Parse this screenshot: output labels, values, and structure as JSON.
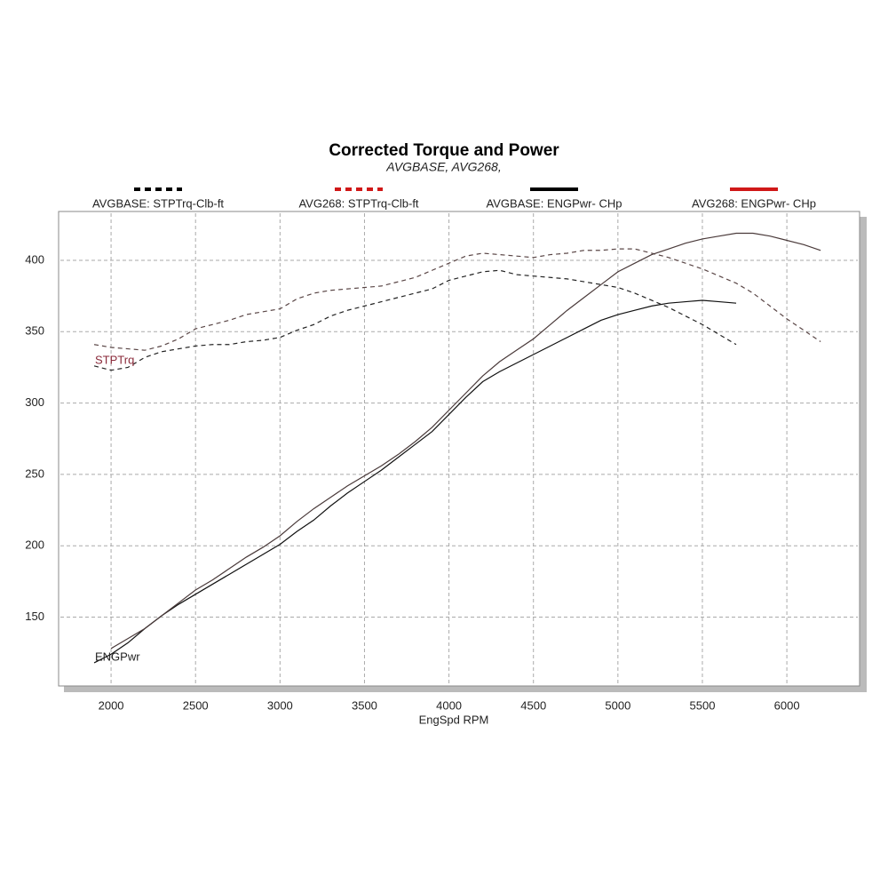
{
  "chart_data": {
    "type": "line",
    "title": "Corrected Torque and Power",
    "subtitle": "AVGBASE, AVG268,",
    "x_label": "EngSpd  RPM",
    "annotations": [
      "STPTrq",
      "ENGPwr"
    ],
    "xlim": [
      1700,
      6420
    ],
    "ylim": [
      103,
      433
    ],
    "xticks": [
      2000,
      2500,
      3000,
      3500,
      4000,
      4500,
      5000,
      5500,
      6000
    ],
    "yticks": [
      150,
      200,
      250,
      300,
      350,
      400
    ],
    "grid": true,
    "series": [
      {
        "name": "AVGBASE: STPTrq-Clb-ft",
        "color": "#000000",
        "line_color": "#222222",
        "dashed": true,
        "x": [
          1900,
          2000,
          2100,
          2200,
          2300,
          2400,
          2500,
          2600,
          2700,
          2800,
          2900,
          3000,
          3100,
          3200,
          3300,
          3400,
          3500,
          3600,
          3700,
          3800,
          3900,
          4000,
          4100,
          4200,
          4300,
          4400,
          4500,
          4600,
          4700,
          4800,
          4900,
          5000,
          5100,
          5200,
          5300,
          5400,
          5500,
          5600,
          5700
        ],
        "values": [
          326,
          323,
          325,
          332,
          336,
          338,
          340,
          341,
          341,
          343,
          344,
          346,
          351,
          355,
          361,
          365,
          368,
          371,
          374,
          377,
          380,
          386,
          389,
          392,
          393,
          390,
          389,
          388,
          387,
          385,
          383,
          381,
          377,
          372,
          367,
          361,
          355,
          348,
          341
        ]
      },
      {
        "name": "AVG268: STPTrq-Clb-ft",
        "color": "#d01818",
        "line_color": "#5a4646",
        "dashed": true,
        "x": [
          1900,
          2000,
          2100,
          2200,
          2300,
          2400,
          2500,
          2600,
          2700,
          2800,
          2900,
          3000,
          3100,
          3200,
          3300,
          3400,
          3500,
          3600,
          3700,
          3800,
          3900,
          4000,
          4100,
          4200,
          4300,
          4400,
          4500,
          4600,
          4700,
          4800,
          4900,
          5000,
          5100,
          5200,
          5300,
          5400,
          5500,
          5600,
          5700,
          5800,
          5900,
          6000,
          6100,
          6200
        ],
        "values": [
          341,
          339,
          338,
          337,
          340,
          345,
          352,
          355,
          358,
          362,
          364,
          366,
          373,
          377,
          379,
          380,
          381,
          382,
          385,
          388,
          393,
          398,
          403,
          405,
          404,
          403,
          402,
          404,
          405,
          407,
          407,
          408,
          408,
          405,
          402,
          398,
          394,
          389,
          384,
          377,
          368,
          359,
          351,
          343
        ]
      },
      {
        "name": "AVGBASE: ENGPwr- CHp",
        "color": "#000000",
        "line_color": "#111111",
        "dashed": false,
        "x": [
          1900,
          2000,
          2100,
          2200,
          2300,
          2400,
          2500,
          2600,
          2700,
          2800,
          2900,
          3000,
          3100,
          3200,
          3300,
          3400,
          3500,
          3600,
          3700,
          3800,
          3900,
          4000,
          4100,
          4200,
          4300,
          4400,
          4500,
          4600,
          4700,
          4800,
          4900,
          5000,
          5100,
          5200,
          5300,
          5400,
          5500,
          5600,
          5700
        ],
        "values": [
          118,
          124,
          132,
          142,
          151,
          159,
          166,
          173,
          180,
          187,
          194,
          201,
          210,
          218,
          228,
          237,
          245,
          253,
          262,
          271,
          280,
          292,
          304,
          315,
          322,
          328,
          334,
          340,
          346,
          352,
          358,
          362,
          365,
          368,
          370,
          371,
          372,
          371,
          370
        ]
      },
      {
        "name": "AVG268: ENGPwr- CHp",
        "color": "#d01818",
        "line_color": "#4a3a3a",
        "dashed": false,
        "x": [
          2000,
          2100,
          2200,
          2300,
          2400,
          2500,
          2600,
          2700,
          2800,
          2900,
          3000,
          3100,
          3200,
          3300,
          3400,
          3500,
          3600,
          3700,
          3800,
          3900,
          4000,
          4100,
          4200,
          4300,
          4400,
          4500,
          4600,
          4700,
          4800,
          4900,
          5000,
          5100,
          5200,
          5300,
          5400,
          5500,
          5600,
          5700,
          5800,
          5900,
          6000,
          6100,
          6200
        ],
        "values": [
          128,
          135,
          142,
          151,
          160,
          169,
          176,
          184,
          192,
          199,
          207,
          217,
          226,
          234,
          242,
          249,
          256,
          264,
          273,
          283,
          295,
          307,
          319,
          329,
          337,
          345,
          355,
          365,
          374,
          383,
          392,
          398,
          404,
          408,
          412,
          415,
          417,
          419,
          419,
          417,
          414,
          411,
          407
        ]
      }
    ]
  }
}
